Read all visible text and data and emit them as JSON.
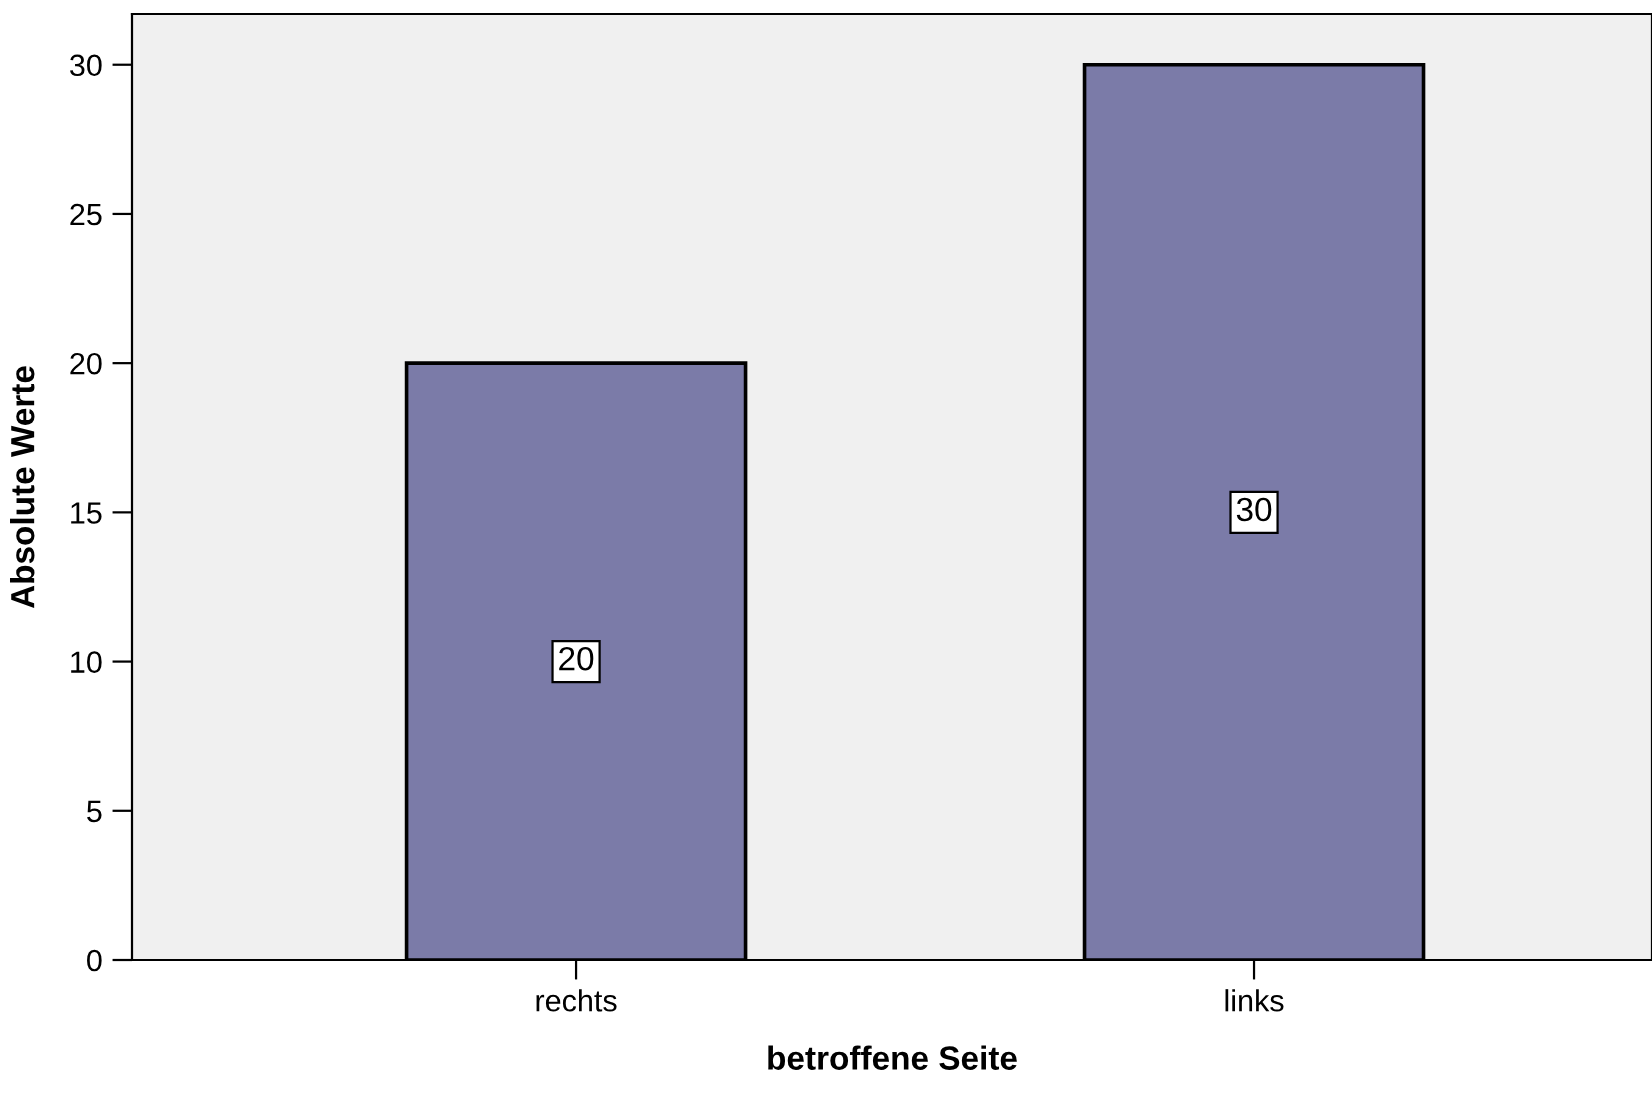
{
  "chart_data": {
    "type": "bar",
    "xlabel": "betroffene Seite",
    "ylabel": "Absolute Werte",
    "categories": [
      "rechts",
      "links"
    ],
    "values": [
      20,
      30
    ],
    "color": "#7b7ba8",
    "ylim": [
      0,
      31.7
    ],
    "yticks": [
      0,
      5,
      10,
      15,
      20,
      25,
      30
    ],
    "grid": false,
    "data_labels": true
  }
}
